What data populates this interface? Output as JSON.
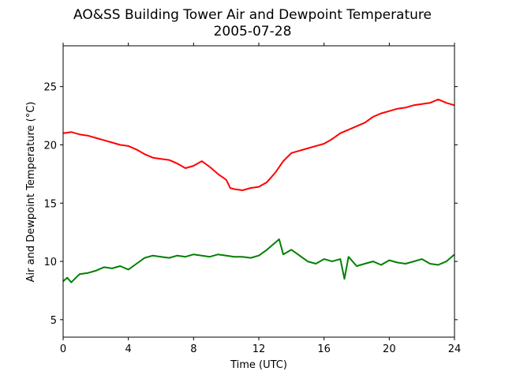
{
  "chart_data": {
    "type": "line",
    "title": "AO&SS Building Tower Air and Dewpoint Temperature",
    "subtitle": "2005-07-28",
    "xlabel": "Time (UTC)",
    "ylabel": "Air and Dewpoint Temperature (°C)",
    "xlim": [
      0,
      24
    ],
    "ylim": [
      3.5,
      28.5
    ],
    "xticks": [
      "0",
      "4",
      "8",
      "12",
      "16",
      "20",
      "24"
    ],
    "yticks": [
      "5",
      "10",
      "15",
      "20",
      "25"
    ],
    "grid": false,
    "series": [
      {
        "color": "#ff0000",
        "x": [
          0,
          0.5,
          1,
          1.5,
          2,
          2.5,
          3,
          3.5,
          4,
          4.5,
          5,
          5.5,
          6,
          6.5,
          7,
          7.5,
          8,
          8.5,
          9,
          9.5,
          10,
          10.25,
          10.5,
          11,
          11.5,
          12,
          12.5,
          13,
          13.5,
          14,
          14.5,
          15,
          15.5,
          16,
          16.5,
          17,
          17.5,
          18,
          18.5,
          19,
          19.5,
          20,
          20.5,
          21,
          21.5,
          22,
          22.5,
          23,
          23.5,
          24
        ],
        "values": [
          21.0,
          21.1,
          20.9,
          20.8,
          20.6,
          20.4,
          20.2,
          20.0,
          19.9,
          19.6,
          19.2,
          18.9,
          18.8,
          18.7,
          18.4,
          18.0,
          18.2,
          18.6,
          18.1,
          17.5,
          17.0,
          16.3,
          16.2,
          16.1,
          16.3,
          16.4,
          16.8,
          17.6,
          18.6,
          19.3,
          19.5,
          19.7,
          19.9,
          20.1,
          20.5,
          21.0,
          21.3,
          21.6,
          21.9,
          22.4,
          22.7,
          22.9,
          23.1,
          23.2,
          23.4,
          23.5,
          23.6,
          23.9,
          23.6,
          23.4
        ]
      },
      {
        "color": "#008000",
        "x": [
          0,
          0.25,
          0.5,
          1,
          1.5,
          2,
          2.5,
          3,
          3.5,
          4,
          4.5,
          5,
          5.5,
          6,
          6.5,
          7,
          7.5,
          8,
          8.5,
          9,
          9.5,
          10,
          10.5,
          11,
          11.5,
          12,
          12.5,
          13,
          13.25,
          13.5,
          14,
          14.5,
          15,
          15.5,
          16,
          16.5,
          17,
          17.25,
          17.5,
          18,
          18.5,
          19,
          19.5,
          20,
          20.5,
          21,
          21.5,
          22,
          22.5,
          23,
          23.5,
          24
        ],
        "values": [
          8.3,
          8.6,
          8.2,
          8.9,
          9.0,
          9.2,
          9.5,
          9.4,
          9.6,
          9.3,
          9.8,
          10.3,
          10.5,
          10.4,
          10.3,
          10.5,
          10.4,
          10.6,
          10.5,
          10.4,
          10.6,
          10.5,
          10.4,
          10.4,
          10.3,
          10.5,
          11.0,
          11.6,
          11.9,
          10.6,
          11.0,
          10.5,
          10.0,
          9.8,
          10.2,
          10.0,
          10.2,
          8.5,
          10.4,
          9.6,
          9.8,
          10.0,
          9.7,
          10.1,
          9.9,
          9.8,
          10.0,
          10.2,
          9.8,
          9.7,
          10.0,
          10.6
        ]
      }
    ]
  }
}
